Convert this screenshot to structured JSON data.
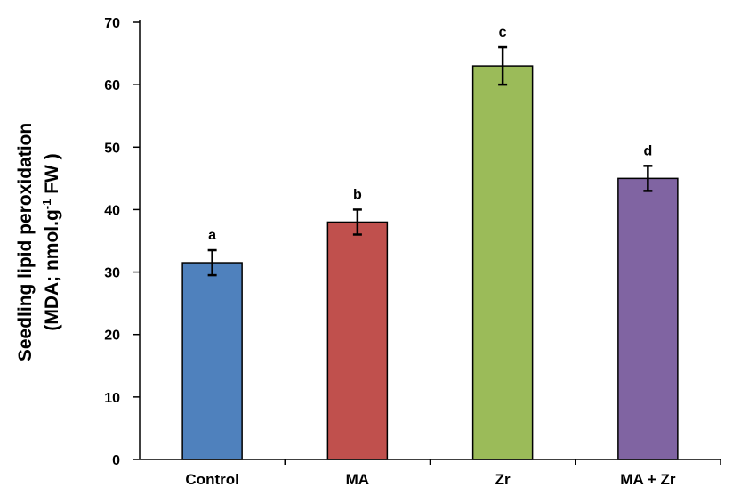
{
  "chart_data": {
    "type": "bar",
    "categories": [
      "Control",
      "MA",
      "Zr",
      "MA + Zr"
    ],
    "values": [
      31.5,
      38,
      63,
      45
    ],
    "errors": [
      2,
      2,
      3,
      2
    ],
    "significance_letters": [
      "a",
      "b",
      "c",
      "d"
    ],
    "colors": [
      "#4f81bd",
      "#c0504d",
      "#9bbb59",
      "#8064a2"
    ],
    "ylabel_line1": "Seedling lipid peroxidation",
    "ylabel_line2_prefix": "(MDA; nmol.g",
    "ylabel_line2_sup": "-1",
    "ylabel_line2_suffix": " FW )",
    "xlabel": "",
    "ylim": [
      0,
      70
    ],
    "yticks": [
      0,
      10,
      20,
      30,
      40,
      50,
      60,
      70
    ],
    "grid": false
  }
}
